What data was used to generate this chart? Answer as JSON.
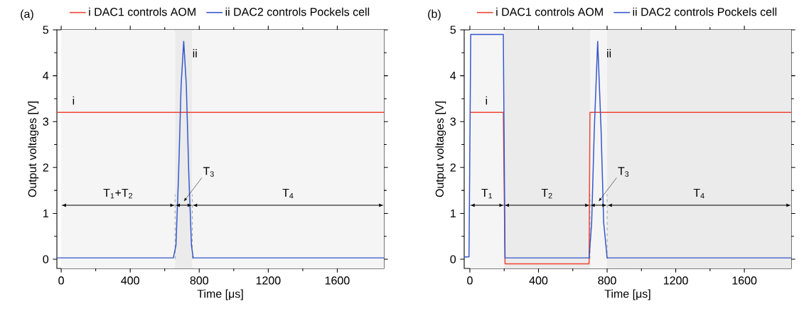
{
  "chart_data": [
    {
      "type": "line",
      "title": "(a)",
      "xlabel": "Time [μs]",
      "ylabel": "Output voltages [V]",
      "xlim": [
        -25,
        1870
      ],
      "ylim": [
        -0.2,
        5
      ],
      "xticks": [
        0,
        400,
        800,
        1200,
        1600
      ],
      "yticks": [
        0,
        1,
        2,
        3,
        4,
        5
      ],
      "grid": false,
      "legend": "top",
      "marker": "none",
      "line_style": "solid",
      "series": [
        {
          "name": "i DAC1 controls AOM",
          "color": "#ee4433",
          "x": [
            -25,
            1870
          ],
          "values": [
            3.2,
            3.2
          ]
        },
        {
          "name": "ii DAC2 controls Pockels cell",
          "color": "#3355cc",
          "x": [
            -25,
            650,
            665,
            680,
            695,
            710,
            725,
            740,
            755,
            765,
            1870
          ],
          "values": [
            0.03,
            0.03,
            0.3,
            1.8,
            3.8,
            4.75,
            3.8,
            1.8,
            0.3,
            0.03,
            0.03
          ]
        }
      ],
      "ref_lines": [
        {
          "axis": "x",
          "value": 660,
          "line_style": "dashed",
          "color": "#555555"
        },
        {
          "axis": "x",
          "value": 760,
          "line_style": "dashed",
          "color": "#555555"
        }
      ],
      "bands": [
        {
          "axis": "x",
          "from": 0,
          "to": 660,
          "label": "T$_{1}$+T$_{2}$",
          "color": "#f5f5f5"
        },
        {
          "axis": "x",
          "from": 660,
          "to": 760,
          "label": "T$_{3}$",
          "color": "#ebebeb"
        },
        {
          "axis": "x",
          "from": 760,
          "to": 1870,
          "label": "T$_{4}$",
          "color": "#f5f5f5"
        }
      ],
      "annotations": [
        "i",
        "ii"
      ]
    },
    {
      "type": "line",
      "title": "(b)",
      "xlabel": "Time [μs]",
      "ylabel": "Output voltages [V]",
      "xlim": [
        -33,
        1873
      ],
      "ylim": [
        -0.2,
        5
      ],
      "xticks": [
        0,
        400,
        800,
        1200,
        1600
      ],
      "yticks": [
        0,
        1,
        2,
        3,
        4,
        5
      ],
      "grid": false,
      "legend": "top",
      "marker": "none",
      "line_style": "solid",
      "series": [
        {
          "name": "i DAC1 controls AOM",
          "color": "#ee4433",
          "x": [
            0,
            195,
            205,
            695,
            700,
            1873
          ],
          "values": [
            3.2,
            3.2,
            -0.1,
            -0.1,
            3.2,
            3.2
          ]
        },
        {
          "name": "ii DAC2 controls Pockels cell",
          "color": "#3355cc",
          "x": [
            -33,
            -5,
            5,
            195,
            205,
            695,
            710,
            725,
            745,
            765,
            780,
            800,
            1873
          ],
          "values": [
            0.05,
            0.05,
            4.9,
            4.9,
            0.03,
            0.03,
            0.8,
            2.8,
            4.75,
            2.8,
            0.8,
            0.03,
            0.03
          ]
        }
      ],
      "ref_lines": [
        {
          "axis": "x",
          "value": 700,
          "line_style": "dashed",
          "color": "#555555"
        },
        {
          "axis": "x",
          "value": 800,
          "line_style": "dashed",
          "color": "#555555"
        }
      ],
      "bands": [
        {
          "axis": "x",
          "from": 0,
          "to": 200,
          "label": "T$_{1}$",
          "color": "#f5f5f5"
        },
        {
          "axis": "x",
          "from": 200,
          "to": 700,
          "label": "T$_{2}$",
          "color": "#ebebeb"
        },
        {
          "axis": "x",
          "from": 700,
          "to": 800,
          "label": "T$_{3}$",
          "color": "#f5f5f5"
        },
        {
          "axis": "x",
          "from": 800,
          "to": 1873,
          "label": "T$_{4}$",
          "color": "#ebebeb"
        }
      ],
      "annotations": [
        "i",
        "ii"
      ]
    }
  ]
}
